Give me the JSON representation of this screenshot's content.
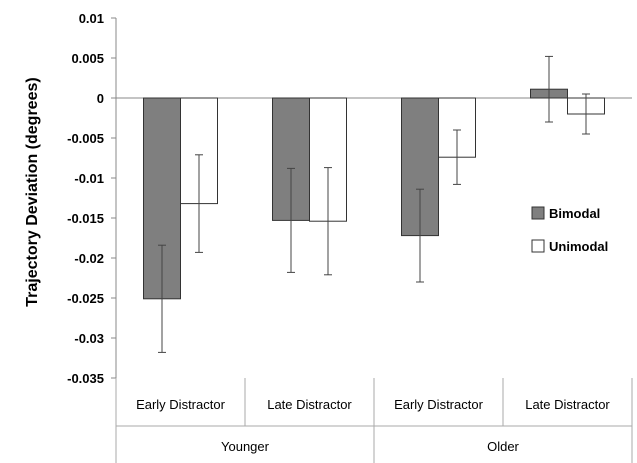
{
  "chart_data": {
    "type": "bar",
    "ylabel": "Trajectory Deviation (degrees)",
    "ylim": [
      -0.035,
      0.01
    ],
    "yticks": [
      "0.01",
      "0.005",
      "0",
      "-0.005",
      "-0.01",
      "-0.015",
      "-0.02",
      "-0.025",
      "-0.03",
      "-0.035"
    ],
    "ytick_values": [
      0.01,
      0.005,
      0,
      -0.005,
      -0.01,
      -0.015,
      -0.02,
      -0.025,
      -0.03,
      -0.035
    ],
    "groups": [
      "Younger",
      "Older"
    ],
    "categories": [
      "Early Distractor",
      "Late Distractor",
      "Early Distractor",
      "Late Distractor"
    ],
    "series": [
      {
        "name": "Bimodal",
        "color": "#7f7f7f",
        "values": [
          -0.0251,
          -0.0153,
          -0.0172,
          0.0011
        ],
        "error": [
          0.0067,
          0.0065,
          0.0058,
          0.0041
        ]
      },
      {
        "name": "Unimodal",
        "color": "#ffffff",
        "values": [
          -0.0132,
          -0.0154,
          -0.0074,
          -0.002
        ],
        "error": [
          0.0061,
          0.0067,
          0.0034,
          0.0025
        ]
      }
    ],
    "legend_position": "right",
    "grid": false
  }
}
